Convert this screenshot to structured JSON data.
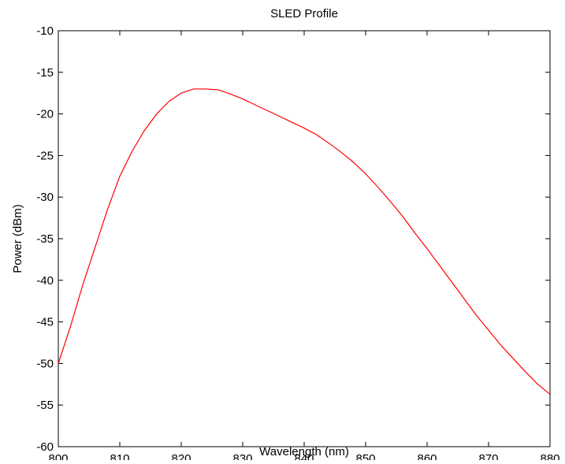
{
  "chart_data": {
    "type": "line",
    "title": "SLED Profile",
    "xlabel": "Wavelength (nm)",
    "ylabel": "Power (dBm)",
    "xlim": [
      800,
      880
    ],
    "ylim": [
      -60,
      -10
    ],
    "xticks": [
      800,
      810,
      820,
      830,
      840,
      850,
      860,
      870,
      880
    ],
    "yticks": [
      -10,
      -15,
      -20,
      -25,
      -30,
      -35,
      -40,
      -45,
      -50,
      -55,
      -60
    ],
    "grid": false,
    "legend": "none",
    "colors": {
      "line": "#ff0000",
      "axes": "#000000",
      "background": "#ffffff"
    },
    "series": [
      {
        "x": [
          800,
          802,
          804,
          806,
          808,
          810,
          812,
          814,
          816,
          818,
          820,
          822,
          824,
          826,
          828,
          830,
          832,
          834,
          836,
          838,
          840,
          842,
          844,
          846,
          848,
          850,
          852,
          854,
          856,
          858,
          860,
          862,
          864,
          866,
          868,
          870,
          872,
          874,
          876,
          878,
          880
        ],
        "values": [
          -50.0,
          -45.5,
          -40.5,
          -36.0,
          -31.5,
          -27.5,
          -24.5,
          -22.0,
          -20.0,
          -18.5,
          -17.5,
          -17.0,
          -17.0,
          -17.1,
          -17.6,
          -18.2,
          -18.9,
          -19.6,
          -20.3,
          -21.0,
          -21.7,
          -22.5,
          -23.5,
          -24.6,
          -25.8,
          -27.2,
          -28.8,
          -30.5,
          -32.3,
          -34.3,
          -36.2,
          -38.2,
          -40.2,
          -42.2,
          -44.2,
          -46.0,
          -47.8,
          -49.4,
          -51.0,
          -52.5,
          -53.7
        ]
      }
    ]
  }
}
